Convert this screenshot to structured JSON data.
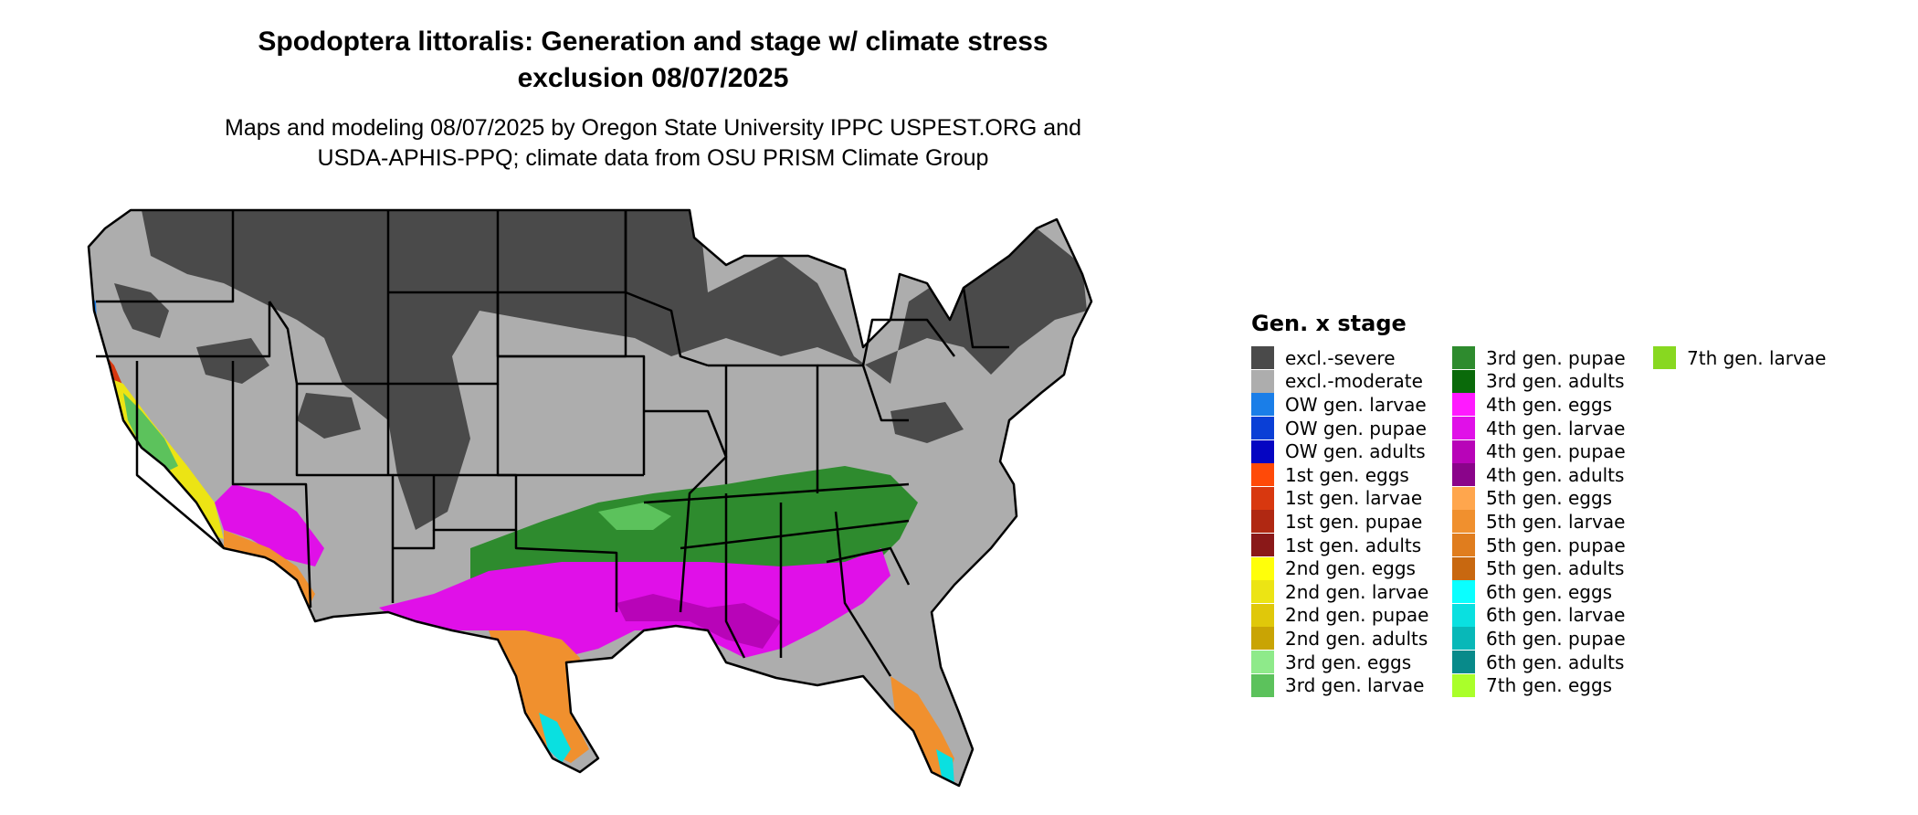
{
  "title_line1": "Spodoptera littoralis: Generation and stage w/ climate stress",
  "title_line2": "exclusion 08/07/2025",
  "subtitle_line1": "Maps and modeling 08/07/2025 by Oregon State University IPPC USPEST.ORG and",
  "subtitle_line2": "USDA-APHIS-PPQ; climate data from OSU PRISM Climate Group",
  "legend": {
    "title": "Gen. x stage",
    "items": [
      {
        "label": "excl.-severe",
        "color": "#4a4a4a"
      },
      {
        "label": "excl.-moderate",
        "color": "#adadad"
      },
      {
        "label": "OW gen. larvae",
        "color": "#1a7ee8"
      },
      {
        "label": "OW gen. pupae",
        "color": "#0a3fd6"
      },
      {
        "label": "OW gen. adults",
        "color": "#0505c2"
      },
      {
        "label": "1st gen. eggs",
        "color": "#ff4a08"
      },
      {
        "label": "1st gen. larvae",
        "color": "#d8380f"
      },
      {
        "label": "1st gen. pupae",
        "color": "#b02812"
      },
      {
        "label": "1st gen. adults",
        "color": "#8a1818"
      },
      {
        "label": "2nd gen. eggs",
        "color": "#ffff0a"
      },
      {
        "label": "2nd gen. larvae",
        "color": "#ece414"
      },
      {
        "label": "2nd gen. pupae",
        "color": "#e0c80a"
      },
      {
        "label": "2nd gen. adults",
        "color": "#c9a404"
      },
      {
        "label": "3rd gen. eggs",
        "color": "#8eea8a"
      },
      {
        "label": "3rd gen. larvae",
        "color": "#5cc25c"
      },
      {
        "label": "3rd gen. pupae",
        "color": "#2e8b2e"
      },
      {
        "label": "3rd gen. adults",
        "color": "#0a6a0a"
      },
      {
        "label": "4th gen. eggs",
        "color": "#ff1aff"
      },
      {
        "label": "4th gen. larvae",
        "color": "#e010e8"
      },
      {
        "label": "4th gen. pupae",
        "color": "#b804b8"
      },
      {
        "label": "4th gen. adults",
        "color": "#8a048a"
      },
      {
        "label": "5th gen. eggs",
        "color": "#ffa64d"
      },
      {
        "label": "5th gen. larvae",
        "color": "#f0902e"
      },
      {
        "label": "5th gen. pupae",
        "color": "#e07d1e"
      },
      {
        "label": "5th gen. adults",
        "color": "#c86810"
      },
      {
        "label": "6th gen. eggs",
        "color": "#0affff"
      },
      {
        "label": "6th gen. larvae",
        "color": "#0ae0e0"
      },
      {
        "label": "6th gen. pupae",
        "color": "#08b8b8"
      },
      {
        "label": "6th gen. adults",
        "color": "#088a8a"
      },
      {
        "label": "7th gen. eggs",
        "color": "#aaff2a"
      },
      {
        "label": "7th gen. larvae",
        "color": "#88d820"
      }
    ]
  }
}
